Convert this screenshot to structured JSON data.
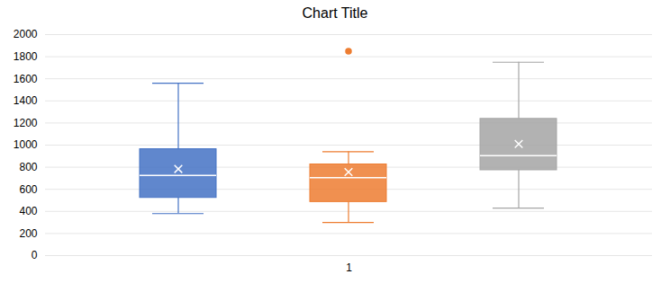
{
  "chart_data": {
    "type": "box",
    "title": "Chart Title",
    "categories": [
      "1"
    ],
    "series": [
      {
        "color": "#4472C4",
        "q1": 522.5,
        "median": 725,
        "q3": 962.5,
        "whisker_low": 380,
        "whisker_high": 1560,
        "mean": 784,
        "outliers": []
      },
      {
        "color": "#ED7D31",
        "q1": 485,
        "median": 705,
        "q3": 825,
        "whisker_low": 300,
        "whisker_high": 940,
        "mean": 756,
        "outliers": [
          1850
        ]
      },
      {
        "color": "#A5A5A5",
        "q1": 772.5,
        "median": 905,
        "q3": 1237.5,
        "whisker_low": 430,
        "whisker_high": 1750,
        "mean": 1010,
        "outliers": []
      }
    ],
    "ylim": [
      0,
      2000
    ],
    "yticks": [
      0,
      200,
      400,
      600,
      800,
      1000,
      1200,
      1400,
      1600,
      1800,
      2000
    ],
    "grid": true
  }
}
